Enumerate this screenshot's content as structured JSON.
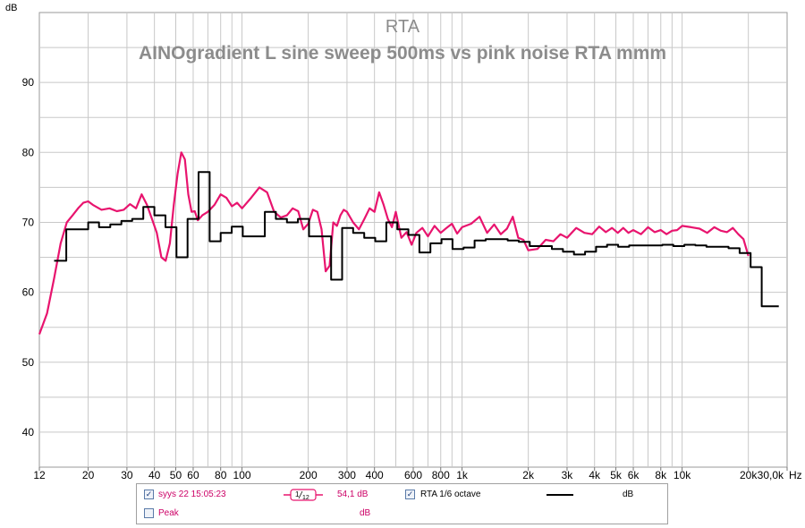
{
  "chart_data": {
    "type": "line",
    "title": "RTA",
    "subtitle": "AINOgradient L sine sweep 500ms vs pink noise RTA mmm",
    "ylabel": "dB",
    "xunit": "Hz",
    "xscale": "log",
    "xlim": [
      12,
      30000
    ],
    "ylim": [
      35,
      100
    ],
    "grid": true,
    "yticks": [
      40,
      50,
      60,
      70,
      80,
      90
    ],
    "xtick_labels": [
      {
        "v": 12,
        "t": "12"
      },
      {
        "v": 20,
        "t": "20"
      },
      {
        "v": 30,
        "t": "30"
      },
      {
        "v": 40,
        "t": "40"
      },
      {
        "v": 50,
        "t": "50"
      },
      {
        "v": 60,
        "t": "60"
      },
      {
        "v": 80,
        "t": "80"
      },
      {
        "v": 100,
        "t": "100"
      },
      {
        "v": 200,
        "t": "200"
      },
      {
        "v": 300,
        "t": "300"
      },
      {
        "v": 400,
        "t": "400"
      },
      {
        "v": 600,
        "t": "600"
      },
      {
        "v": 800,
        "t": "800"
      },
      {
        "v": 1000,
        "t": "1k"
      },
      {
        "v": 2000,
        "t": "2k"
      },
      {
        "v": 3000,
        "t": "3k"
      },
      {
        "v": 4000,
        "t": "4k"
      },
      {
        "v": 5000,
        "t": "5k"
      },
      {
        "v": 6000,
        "t": "6k"
      },
      {
        "v": 8000,
        "t": "8k"
      },
      {
        "v": 10000,
        "t": "10k"
      },
      {
        "v": 20000,
        "t": "20k"
      },
      {
        "v": 30000,
        "t": "30,0k"
      }
    ],
    "series": [
      {
        "name": "syys 22 15:05:23",
        "color": "#e8146e",
        "style": "smooth",
        "x": [
          12,
          13,
          14,
          15,
          16,
          17,
          18,
          19,
          20,
          21,
          23,
          25,
          27,
          29,
          31,
          33,
          35,
          37,
          39,
          41,
          43,
          45,
          47,
          49,
          51,
          53,
          55,
          57,
          59,
          61,
          63,
          66,
          70,
          75,
          80,
          85,
          90,
          95,
          100,
          110,
          120,
          130,
          140,
          150,
          160,
          170,
          180,
          190,
          200,
          210,
          220,
          230,
          240,
          250,
          260,
          270,
          280,
          290,
          300,
          320,
          340,
          360,
          380,
          400,
          420,
          440,
          460,
          480,
          500,
          530,
          560,
          590,
          620,
          660,
          700,
          750,
          800,
          850,
          900,
          950,
          1000,
          1100,
          1200,
          1300,
          1400,
          1500,
          1600,
          1700,
          1800,
          1900,
          2000,
          2200,
          2400,
          2600,
          2800,
          3000,
          3300,
          3600,
          3900,
          4200,
          4500,
          4800,
          5100,
          5400,
          5700,
          6000,
          6500,
          7000,
          7500,
          8000,
          8500,
          9000,
          9500,
          10000,
          11000,
          12000,
          13000,
          14000,
          15000,
          16000,
          17000,
          18000,
          19000,
          20000
        ],
        "y": [
          54,
          57,
          62,
          67,
          70,
          71,
          72,
          72.8,
          73,
          72.5,
          71.8,
          72,
          71.6,
          71.8,
          72.6,
          72,
          74,
          72.5,
          70.5,
          68.5,
          65,
          64.5,
          67,
          72.5,
          77,
          80,
          79,
          74,
          71.5,
          71.6,
          70.3,
          71,
          71.5,
          72.5,
          74,
          73.5,
          72.3,
          72.8,
          72,
          73.5,
          75,
          74.3,
          71.5,
          70.7,
          71,
          72,
          71.6,
          69,
          69.8,
          71.8,
          71.5,
          69,
          63,
          63.8,
          70,
          69.5,
          71,
          71.8,
          71.5,
          70,
          69,
          70.5,
          72,
          71.5,
          74.3,
          72.5,
          70.5,
          69.3,
          71.5,
          67.8,
          68.6,
          66.8,
          68.5,
          69.2,
          68,
          69.5,
          68.5,
          69.2,
          69.8,
          68.4,
          69.3,
          69.8,
          70.8,
          68.5,
          69.7,
          68.3,
          69.1,
          70.8,
          67.8,
          67.5,
          66,
          66.2,
          67.5,
          67.3,
          68.3,
          67.8,
          69.2,
          68.5,
          68.3,
          69.4,
          68.6,
          69.2,
          68.5,
          69.2,
          68.5,
          68.9,
          68.3,
          69.3,
          68.6,
          68.9,
          68.3,
          68.8,
          68.9,
          69.5,
          69.3,
          69.1,
          68.5,
          69.3,
          68.8,
          68.6,
          69.2,
          68.3,
          67.6,
          65.2
        ]
      },
      {
        "name": "RTA 1/6 octave",
        "color": "#000000",
        "style": "step",
        "x": [
          14,
          15.9,
          17.8,
          20,
          22.4,
          25.2,
          28.3,
          31.7,
          35.6,
          40,
          44.9,
          50.4,
          56.6,
          63.5,
          71.3,
          80,
          89.8,
          100.8,
          113.1,
          127,
          142.5,
          160,
          179.6,
          201.6,
          226.3,
          254,
          285.1,
          320,
          359.2,
          403.2,
          452.5,
          508,
          570.2,
          640,
          718.4,
          806.3,
          905.1,
          1016,
          1140.4,
          1280,
          1436.8,
          1612.7,
          1810.2,
          2031.9,
          2280.7,
          2560,
          2873.5,
          3225.4,
          3620.4,
          4063.7,
          4561.4,
          5120,
          5747,
          6450.8,
          7240.8,
          8127.5,
          9122.8,
          10240,
          11494,
          12901.6,
          14481.6,
          16255,
          18245.6,
          20480,
          22988,
          25803,
          27500
        ],
        "y": [
          64.5,
          69,
          69,
          70,
          69.3,
          69.7,
          70.2,
          70.5,
          72.2,
          71,
          69.3,
          65,
          70.5,
          77.2,
          67.3,
          68.5,
          69.4,
          68,
          68,
          71.5,
          70.5,
          70,
          70.5,
          68,
          68,
          61.8,
          69.2,
          68.5,
          67.8,
          67.3,
          70,
          69,
          68.2,
          65.7,
          67,
          67.6,
          66.2,
          66.4,
          67.4,
          67.6,
          67.6,
          67.4,
          67.2,
          66.6,
          66.6,
          66.2,
          65.8,
          65.4,
          65.8,
          66.5,
          66.8,
          66.5,
          66.7,
          66.7,
          66.7,
          66.8,
          66.6,
          66.8,
          66.7,
          66.5,
          66.5,
          66.3,
          65.6,
          63.6,
          58,
          58,
          58
        ]
      }
    ]
  },
  "legend": {
    "row1": {
      "checked_mark": "✓",
      "series_label": "syys 22 15:05:23",
      "smoothing_num": "1",
      "smoothing_den": "12",
      "value": "54,1 dB",
      "rta_label": "RTA 1/6 octave",
      "rta_unit": "dB"
    },
    "row2": {
      "peak_label": "Peak",
      "peak_unit": "dB"
    }
  }
}
